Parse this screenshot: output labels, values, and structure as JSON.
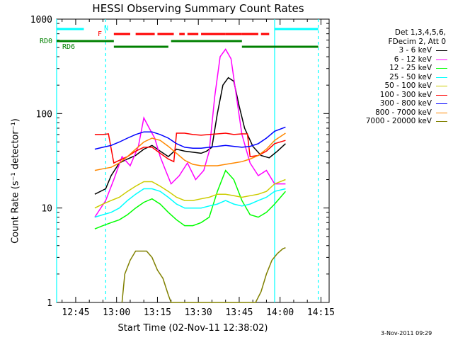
{
  "chart_data": {
    "type": "line",
    "title": "HESSI Observing Summary Count Rates",
    "xlabel": "Start Time (02-Nov-11 12:38:02)",
    "ylabel": "Count Rate (s⁻¹ detector⁻¹)",
    "yscale": "log",
    "ylim": [
      1,
      1000
    ],
    "xlim": [
      "12:38",
      "14:18"
    ],
    "x_ticks": [
      "12:45",
      "13:00",
      "13:15",
      "13:30",
      "13:45",
      "14:00",
      "14:15"
    ],
    "y_ticks": [
      "1",
      "10",
      "100",
      "1000"
    ],
    "legend_header": [
      "Det 1,3,4,5,6,",
      "FDecim 2, Att 0"
    ],
    "legend_position": "right",
    "series": [
      {
        "name": "3 - 6 keV",
        "color": "#000000",
        "points": [
          [
            "12:52",
            14
          ],
          [
            "12:56",
            16
          ],
          [
            "12:58",
            22
          ],
          [
            "13:01",
            30
          ],
          [
            "13:04",
            33
          ],
          [
            "13:07",
            36
          ],
          [
            "13:10",
            42
          ],
          [
            "13:13",
            46
          ],
          [
            "13:16",
            40
          ],
          [
            "13:19",
            35
          ],
          [
            "13:22",
            42
          ],
          [
            "13:25",
            40
          ],
          [
            "13:28",
            39
          ],
          [
            "13:31",
            38
          ],
          [
            "13:33",
            40
          ],
          [
            "13:35",
            44
          ],
          [
            "13:37",
            100
          ],
          [
            "13:39",
            200
          ],
          [
            "13:41",
            240
          ],
          [
            "13:43",
            220
          ],
          [
            "13:45",
            120
          ],
          [
            "13:47",
            70
          ],
          [
            "13:50",
            45
          ],
          [
            "13:53",
            36
          ],
          [
            "13:56",
            34
          ],
          [
            "13:59",
            40
          ],
          [
            "14:02",
            48
          ]
        ]
      },
      {
        "name": "6 - 12 keV",
        "color": "#ff00ff",
        "points": [
          [
            "12:52",
            8
          ],
          [
            "12:56",
            12
          ],
          [
            "12:59",
            20
          ],
          [
            "13:02",
            35
          ],
          [
            "13:05",
            28
          ],
          [
            "13:08",
            45
          ],
          [
            "13:10",
            90
          ],
          [
            "13:12",
            70
          ],
          [
            "13:14",
            55
          ],
          [
            "13:16",
            35
          ],
          [
            "13:18",
            25
          ],
          [
            "13:20",
            18
          ],
          [
            "13:23",
            22
          ],
          [
            "13:26",
            30
          ],
          [
            "13:29",
            20
          ],
          [
            "13:32",
            25
          ],
          [
            "13:34",
            40
          ],
          [
            "13:36",
            150
          ],
          [
            "13:38",
            400
          ],
          [
            "13:40",
            480
          ],
          [
            "13:42",
            380
          ],
          [
            "13:44",
            150
          ],
          [
            "13:46",
            60
          ],
          [
            "13:49",
            30
          ],
          [
            "13:52",
            22
          ],
          [
            "13:55",
            25
          ],
          [
            "13:58",
            18
          ],
          [
            "14:02",
            18
          ]
        ]
      },
      {
        "name": "12 - 25 keV",
        "color": "#00ff00",
        "points": [
          [
            "12:52",
            6
          ],
          [
            "12:55",
            6.5
          ],
          [
            "12:58",
            7
          ],
          [
            "13:01",
            7.5
          ],
          [
            "13:04",
            8.5
          ],
          [
            "13:07",
            10
          ],
          [
            "13:10",
            11.5
          ],
          [
            "13:13",
            12.5
          ],
          [
            "13:16",
            11
          ],
          [
            "13:19",
            9
          ],
          [
            "13:22",
            7.5
          ],
          [
            "13:25",
            6.5
          ],
          [
            "13:28",
            6.5
          ],
          [
            "13:31",
            7
          ],
          [
            "13:34",
            8
          ],
          [
            "13:37",
            15
          ],
          [
            "13:40",
            25
          ],
          [
            "13:43",
            20
          ],
          [
            "13:46",
            12
          ],
          [
            "13:49",
            8.5
          ],
          [
            "13:52",
            8
          ],
          [
            "13:55",
            9
          ],
          [
            "13:58",
            11
          ],
          [
            "14:02",
            15
          ]
        ]
      },
      {
        "name": "25 - 50 keV",
        "color": "#00ffff",
        "points": [
          [
            "12:52",
            8
          ],
          [
            "12:55",
            8.5
          ],
          [
            "12:58",
            9
          ],
          [
            "13:01",
            10
          ],
          [
            "13:04",
            12
          ],
          [
            "13:07",
            14
          ],
          [
            "13:10",
            16
          ],
          [
            "13:13",
            16
          ],
          [
            "13:16",
            15
          ],
          [
            "13:19",
            13
          ],
          [
            "13:22",
            11
          ],
          [
            "13:25",
            10
          ],
          [
            "13:28",
            10
          ],
          [
            "13:31",
            10
          ],
          [
            "13:34",
            10.5
          ],
          [
            "13:37",
            11
          ],
          [
            "13:40",
            12
          ],
          [
            "13:43",
            11
          ],
          [
            "13:46",
            10.5
          ],
          [
            "13:49",
            11
          ],
          [
            "13:52",
            12
          ],
          [
            "13:55",
            13
          ],
          [
            "13:58",
            15
          ],
          [
            "14:02",
            16
          ]
        ]
      },
      {
        "name": "50 - 100 keV",
        "color": "#cccc00",
        "points": [
          [
            "12:52",
            10
          ],
          [
            "12:55",
            11
          ],
          [
            "12:58",
            12
          ],
          [
            "13:01",
            13
          ],
          [
            "13:04",
            15
          ],
          [
            "13:07",
            17
          ],
          [
            "13:10",
            19
          ],
          [
            "13:13",
            19
          ],
          [
            "13:16",
            17
          ],
          [
            "13:19",
            15
          ],
          [
            "13:22",
            13
          ],
          [
            "13:25",
            12
          ],
          [
            "13:28",
            12
          ],
          [
            "13:31",
            12.5
          ],
          [
            "13:34",
            13
          ],
          [
            "13:37",
            14
          ],
          [
            "13:40",
            14
          ],
          [
            "13:43",
            13.5
          ],
          [
            "13:46",
            13
          ],
          [
            "13:49",
            13.5
          ],
          [
            "13:52",
            14
          ],
          [
            "13:55",
            15
          ],
          [
            "13:58",
            18
          ],
          [
            "14:02",
            20
          ]
        ]
      },
      {
        "name": "100 - 300 keV",
        "color": "#ff0000",
        "points": [
          [
            "12:52",
            60
          ],
          [
            "12:55",
            60
          ],
          [
            "12:57",
            61
          ],
          [
            "12:59",
            30
          ],
          [
            "13:01",
            32
          ],
          [
            "13:04",
            35
          ],
          [
            "13:07",
            40
          ],
          [
            "13:10",
            44
          ],
          [
            "13:13",
            44
          ],
          [
            "13:16",
            38
          ],
          [
            "13:19",
            33
          ],
          [
            "13:21",
            31
          ],
          [
            "13:22",
            62
          ],
          [
            "13:25",
            62
          ],
          [
            "13:28",
            60
          ],
          [
            "13:31",
            59
          ],
          [
            "13:34",
            60
          ],
          [
            "13:37",
            61
          ],
          [
            "13:40",
            62
          ],
          [
            "13:43",
            60
          ],
          [
            "13:46",
            61
          ],
          [
            "13:48",
            61
          ],
          [
            "13:49",
            35
          ],
          [
            "13:52",
            36
          ],
          [
            "13:55",
            40
          ],
          [
            "13:58",
            48
          ],
          [
            "14:02",
            52
          ]
        ]
      },
      {
        "name": "300 - 800 keV",
        "color": "#0000ff",
        "points": [
          [
            "12:52",
            42
          ],
          [
            "12:55",
            44
          ],
          [
            "12:58",
            46
          ],
          [
            "13:01",
            50
          ],
          [
            "13:04",
            55
          ],
          [
            "13:07",
            60
          ],
          [
            "13:10",
            64
          ],
          [
            "13:13",
            64
          ],
          [
            "13:16",
            60
          ],
          [
            "13:19",
            55
          ],
          [
            "13:22",
            48
          ],
          [
            "13:25",
            44
          ],
          [
            "13:28",
            43
          ],
          [
            "13:31",
            43
          ],
          [
            "13:34",
            44
          ],
          [
            "13:37",
            45
          ],
          [
            "13:40",
            46
          ],
          [
            "13:43",
            45
          ],
          [
            "13:46",
            44
          ],
          [
            "13:49",
            45
          ],
          [
            "13:52",
            48
          ],
          [
            "13:55",
            55
          ],
          [
            "13:58",
            65
          ],
          [
            "14:02",
            72
          ]
        ]
      },
      {
        "name": "800 - 7000 keV",
        "color": "#ff8800",
        "points": [
          [
            "12:52",
            25
          ],
          [
            "12:55",
            26
          ],
          [
            "12:58",
            27
          ],
          [
            "13:01",
            30
          ],
          [
            "13:04",
            35
          ],
          [
            "13:07",
            42
          ],
          [
            "13:10",
            50
          ],
          [
            "13:13",
            55
          ],
          [
            "13:16",
            52
          ],
          [
            "13:19",
            45
          ],
          [
            "13:22",
            38
          ],
          [
            "13:25",
            32
          ],
          [
            "13:28",
            29
          ],
          [
            "13:31",
            28
          ],
          [
            "13:34",
            28
          ],
          [
            "13:37",
            28
          ],
          [
            "13:40",
            29
          ],
          [
            "13:43",
            30
          ],
          [
            "13:46",
            31
          ],
          [
            "13:49",
            33
          ],
          [
            "13:52",
            36
          ],
          [
            "13:55",
            42
          ],
          [
            "13:58",
            52
          ],
          [
            "14:02",
            62
          ]
        ]
      },
      {
        "name": "7000 - 20000 keV",
        "color": "#808000",
        "points": [
          [
            "13:02",
            1
          ],
          [
            "13:03",
            2
          ],
          [
            "13:05",
            2.8
          ],
          [
            "13:07",
            3.5
          ],
          [
            "13:09",
            3.5
          ],
          [
            "13:11",
            3.5
          ],
          [
            "13:13",
            3
          ],
          [
            "13:15",
            2.2
          ],
          [
            "13:17",
            1.8
          ],
          [
            "13:19",
            1.2
          ],
          [
            "13:20",
            1
          ],
          [
            "13:51",
            1
          ],
          [
            "13:53",
            1.3
          ],
          [
            "13:55",
            2
          ],
          [
            "13:57",
            2.8
          ],
          [
            "13:59",
            3.3
          ],
          [
            "14:01",
            3.7
          ],
          [
            "14:02",
            3.8
          ]
        ]
      }
    ],
    "state_bars": {
      "top_label": "N",
      "flare_label": "F",
      "rd0_label": "RD0",
      "rd6_label": "RD6",
      "n_segments": [
        [
          "12:38",
          "12:48"
        ],
        [
          "13:58",
          "14:14"
        ]
      ],
      "f_segments": [
        [
          "12:59",
          "13:05"
        ],
        [
          "13:07",
          "13:14"
        ],
        [
          "13:15",
          "13:21"
        ],
        [
          "13:23",
          "13:25"
        ],
        [
          "13:26",
          "13:30"
        ],
        [
          "13:31",
          "13:40"
        ],
        [
          "13:40",
          "13:46"
        ],
        [
          "13:46",
          "13:52"
        ],
        [
          "13:53",
          "13:56"
        ]
      ],
      "rd0_segments": [
        [
          "12:38",
          "12:59"
        ],
        [
          "13:20",
          "13:46"
        ]
      ],
      "rd6_segments": [
        [
          "12:59",
          "13:19"
        ],
        [
          "13:46",
          "14:14"
        ]
      ]
    },
    "vertical_lines": [
      {
        "time": "12:38",
        "style": "solid"
      },
      {
        "time": "12:56",
        "style": "dashed"
      },
      {
        "time": "13:58",
        "style": "solid"
      },
      {
        "time": "14:14",
        "style": "dashed"
      }
    ]
  },
  "page": {
    "stamp": "3-Nov-2011 09:29"
  },
  "colors": {
    "axis": "#000000",
    "night_marker": "#00ffff",
    "flare_marker": "#ff0000",
    "rd_marker": "#008000"
  }
}
